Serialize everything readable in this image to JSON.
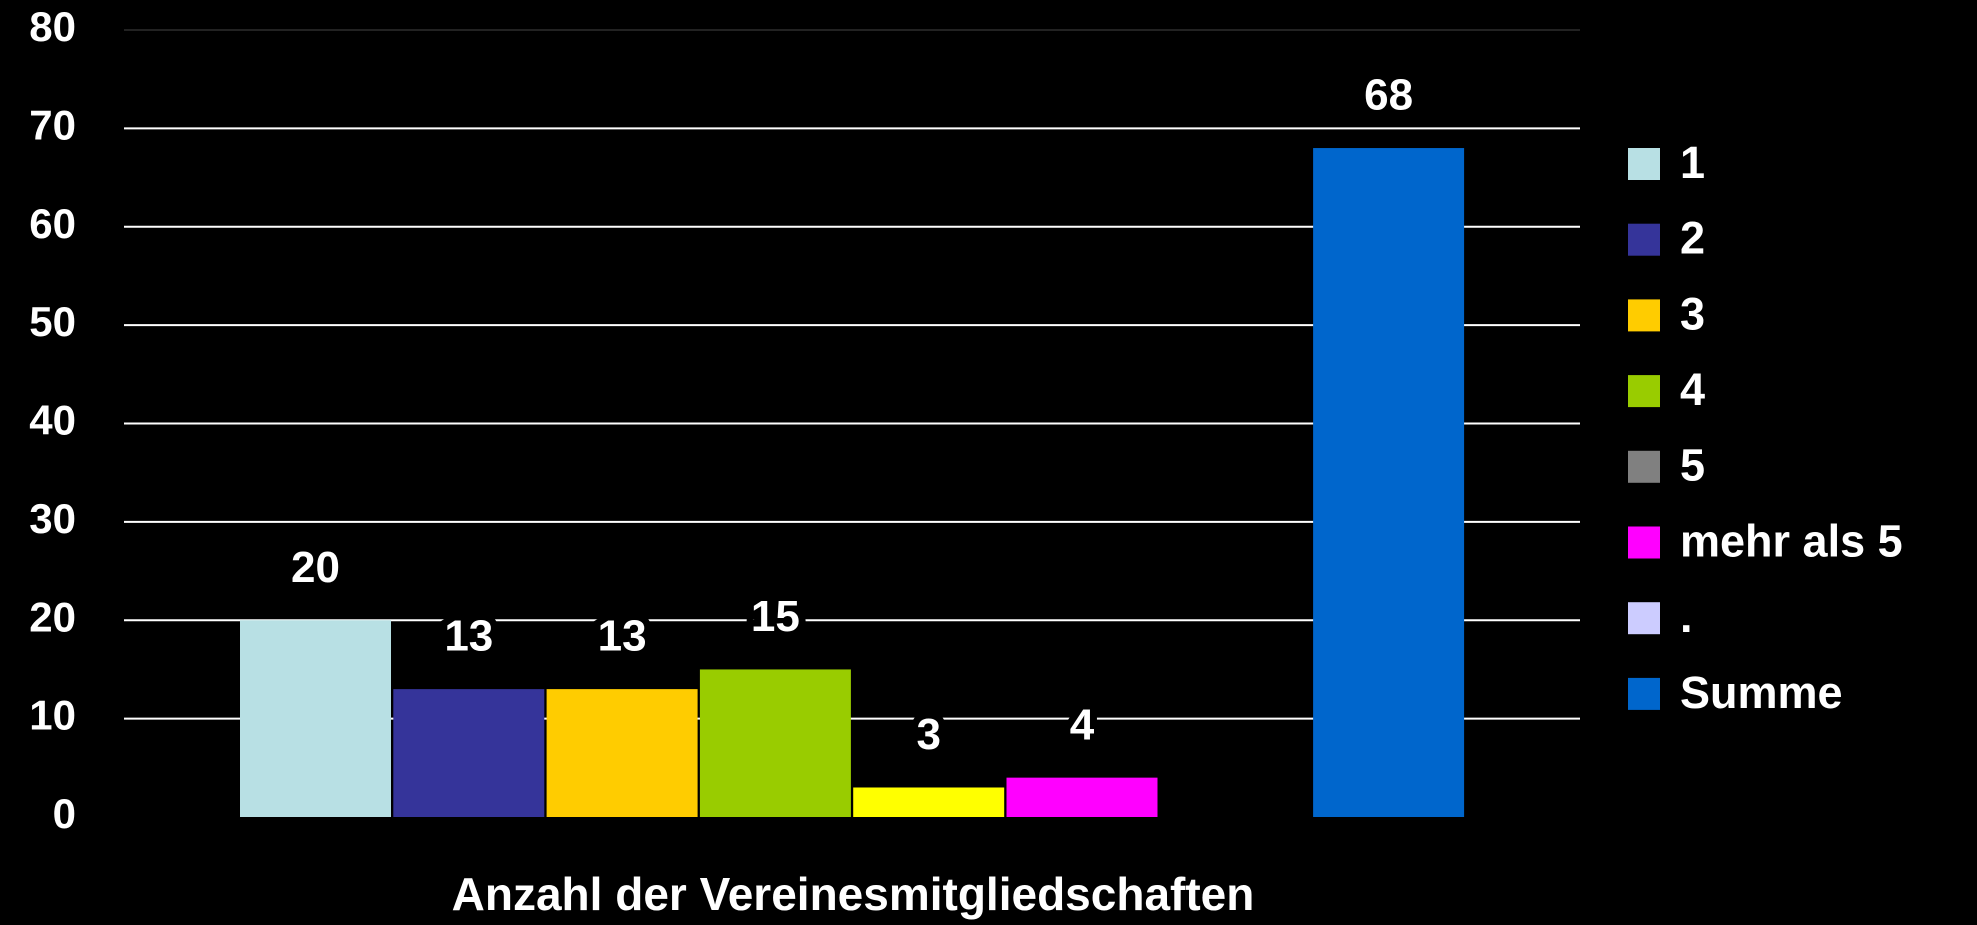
{
  "chart_data": {
    "type": "bar",
    "x_label": "Anzahl der Vereinesmitgliedschaften",
    "series": [
      {
        "name": "1",
        "color": "#b8e0e4",
        "values": [
          20
        ]
      },
      {
        "name": "2",
        "color": "#35349a",
        "values": [
          13
        ]
      },
      {
        "name": "3",
        "color": "#ffcc00",
        "values": [
          13
        ]
      },
      {
        "name": "4",
        "color": "#99cc00",
        "values": [
          15
        ]
      },
      {
        "name": "5",
        "color": "#ffff00",
        "legend_color": "#808080",
        "values": [
          3
        ]
      },
      {
        "name": "mehr als 5",
        "color": "#ff00ff",
        "values": [
          4
        ]
      },
      {
        "name": ".",
        "color": "#ccccff",
        "values": [
          null
        ]
      },
      {
        "name": "Summe",
        "color": "#0066cc",
        "values": [
          68
        ]
      }
    ],
    "ylim": [
      0,
      80
    ],
    "yticks": [
      0,
      10,
      20,
      30,
      40,
      50,
      60,
      70,
      80
    ],
    "grid": true,
    "legend": "right"
  }
}
